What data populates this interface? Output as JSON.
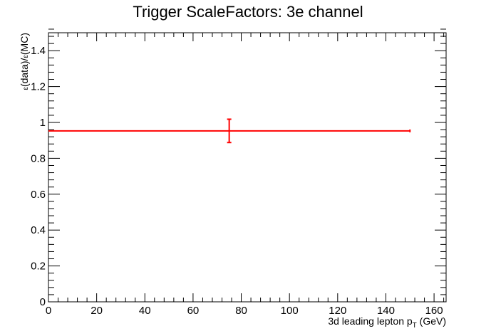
{
  "chart_data": {
    "type": "scatter",
    "title": "Trigger ScaleFactors: 3e channel",
    "xlabel": {
      "main": "3d leading lepton p",
      "sub": "T",
      "unit": " (GeV)"
    },
    "ylabel": {
      "pre": "ε",
      "mid": "(data)/",
      "post": "ε",
      "end": "(MC)"
    },
    "xlim": [
      0,
      165
    ],
    "ylim": [
      0,
      1.5
    ],
    "x_ticks": [
      0,
      20,
      40,
      60,
      80,
      100,
      120,
      140,
      160
    ],
    "x_tick_labels": [
      "0",
      "20",
      "40",
      "60",
      "80",
      "100",
      "120",
      "140",
      "160"
    ],
    "y_ticks": [
      0,
      0.2,
      0.4,
      0.6,
      0.8,
      1.0,
      1.2,
      1.4
    ],
    "y_tick_labels": [
      "0",
      "0.2",
      "0.4",
      "0.6",
      "0.8",
      "1",
      "1.2",
      "1.4"
    ],
    "grid": false,
    "series": [
      {
        "color": "#ff0000",
        "points": [
          {
            "x": 75,
            "y": 0.953,
            "x_low": 0,
            "x_high": 150,
            "y_err": 0.065
          }
        ]
      }
    ]
  }
}
